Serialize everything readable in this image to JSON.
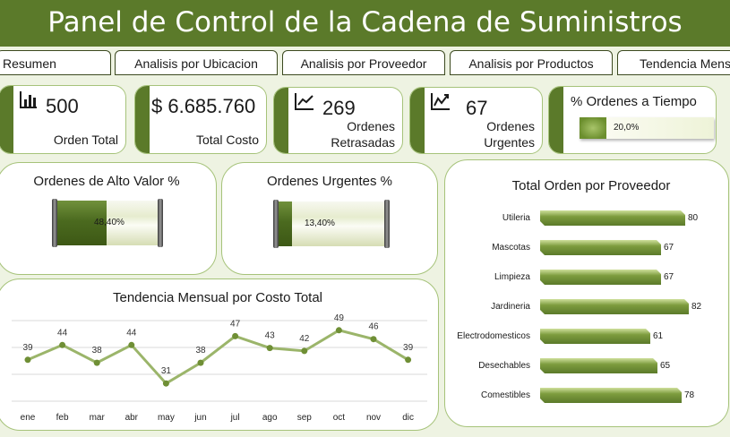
{
  "title": "Panel de Control de la Cadena de Suministros",
  "tabs": [
    "Resumen",
    "Analisis por Ubicacion",
    "Analisis por Proveedor",
    "Analisis por Productos",
    "Tendencia Mensual"
  ],
  "kpis": {
    "orders": {
      "value": "500",
      "label": "Orden Total",
      "icon": "bar-chart-icon"
    },
    "cost": {
      "value": "$ 6.685.760",
      "label": "Total Costo"
    },
    "delayed": {
      "value": "269",
      "label": "Ordenes Retrasadas",
      "icon": "line-chart-icon"
    },
    "urgent": {
      "value": "67",
      "label": "Ordenes Urgentes",
      "icon": "trend-chart-icon"
    },
    "ontime": {
      "title": "% Ordenes a Tiempo",
      "value_label": "20,0%",
      "fraction": 0.2
    }
  },
  "gauges": {
    "high_value": {
      "title": "Ordenes de Alto Valor %",
      "value_label": "48,40%",
      "fraction": 0.484
    },
    "urgent": {
      "title": "Ordenes Urgentes %",
      "value_label": "13,40%",
      "fraction": 0.134
    }
  },
  "monthly_title": "Tendencia Mensual por Costo Total",
  "supplier_title": "Total Orden por Proveedor",
  "chart_data": [
    {
      "type": "line",
      "title": "Tendencia Mensual por Costo Total",
      "categories": [
        "ene",
        "feb",
        "mar",
        "abr",
        "may",
        "jun",
        "jul",
        "ago",
        "sep",
        "oct",
        "nov",
        "dic"
      ],
      "values": [
        39,
        44,
        38,
        44,
        31,
        38,
        47,
        43,
        42,
        49,
        46,
        39
      ],
      "grid": true,
      "color": "#9bb56a"
    },
    {
      "type": "bar",
      "orientation": "horizontal",
      "title": "Total Orden por Proveedor",
      "categories": [
        "Utileria",
        "Mascotas",
        "Limpieza",
        "Jardineria",
        "Electrodomesticos",
        "Desechables",
        "Comestibles"
      ],
      "values": [
        80,
        67,
        67,
        82,
        61,
        65,
        78
      ],
      "color": "#5b7a2a"
    }
  ]
}
